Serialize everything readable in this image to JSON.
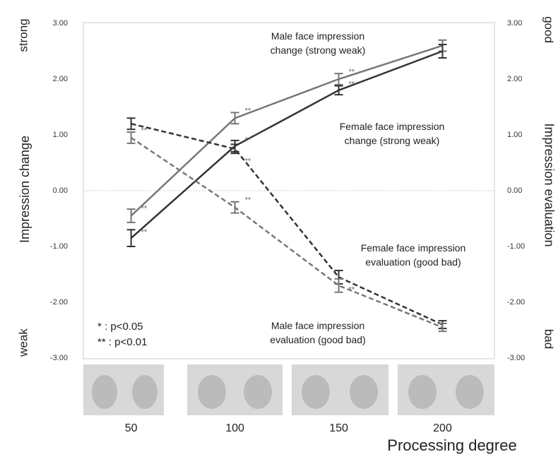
{
  "chart_data": {
    "type": "line",
    "x_label": "Processing degree",
    "y_label": "Impression change",
    "y2_label": "Impression evaluation",
    "y_top_label": "strong",
    "y_bottom_label": "weak",
    "y2_top_label": "good",
    "y2_bottom_label": "bad",
    "x": [
      50,
      100,
      150,
      200
    ],
    "xlim": [
      27,
      225
    ],
    "xticks": [
      50,
      100,
      150,
      200
    ],
    "ylim": [
      -3,
      3
    ],
    "yticks": [
      {
        "value": -3,
        "label": "-3.00"
      },
      {
        "value": -2,
        "label": "-2.00"
      },
      {
        "value": -1,
        "label": "-1.00"
      },
      {
        "value": 0,
        "label": "0.00"
      },
      {
        "value": 1,
        "label": "1.00"
      },
      {
        "value": 2,
        "label": "2.00"
      },
      {
        "value": 3,
        "label": "3.00"
      }
    ],
    "y2lim": [
      -3,
      3
    ],
    "y2ticks": [
      {
        "value": -3,
        "label": "-3.00"
      },
      {
        "value": -2,
        "label": "-2.00"
      },
      {
        "value": -1,
        "label": "-1.00"
      },
      {
        "value": 0,
        "label": "0.00"
      },
      {
        "value": 1,
        "label": "1.00"
      },
      {
        "value": 2,
        "label": "2.00"
      },
      {
        "value": 3,
        "label": "3.00"
      }
    ],
    "series": [
      {
        "name": "Male face impression change (strong weak)",
        "color": "#777777",
        "dash": false,
        "values": [
          -0.45,
          1.3,
          2.0,
          2.6
        ],
        "errors": [
          0.12,
          0.1,
          0.1,
          0.1
        ],
        "significance": [
          "**",
          "**",
          "**",
          null
        ]
      },
      {
        "name": "Female face impression change (strong weak)",
        "color": "#333333",
        "dash": false,
        "values": [
          -0.85,
          0.8,
          1.8,
          2.5
        ],
        "errors": [
          0.15,
          0.1,
          0.08,
          0.12
        ],
        "significance": [
          "**",
          "**",
          "**",
          null
        ]
      },
      {
        "name": "Female face impression evaluation (good bad)",
        "color": "#333333",
        "dash": true,
        "values": [
          1.2,
          0.75,
          -1.55,
          -2.4
        ],
        "errors": [
          0.1,
          0.08,
          0.12,
          0.07
        ],
        "significance": [
          null,
          "**",
          "**",
          null
        ]
      },
      {
        "name": "Male face impression evaluation (good bad)",
        "color": "#777777",
        "dash": true,
        "values": [
          0.95,
          -0.3,
          -1.7,
          -2.45
        ],
        "errors": [
          0.1,
          0.1,
          0.12,
          0.07
        ],
        "significance": [
          "**",
          "**",
          null,
          null
        ]
      }
    ],
    "legend": [
      "* : p<0.05",
      "** : p<0.01"
    ]
  }
}
